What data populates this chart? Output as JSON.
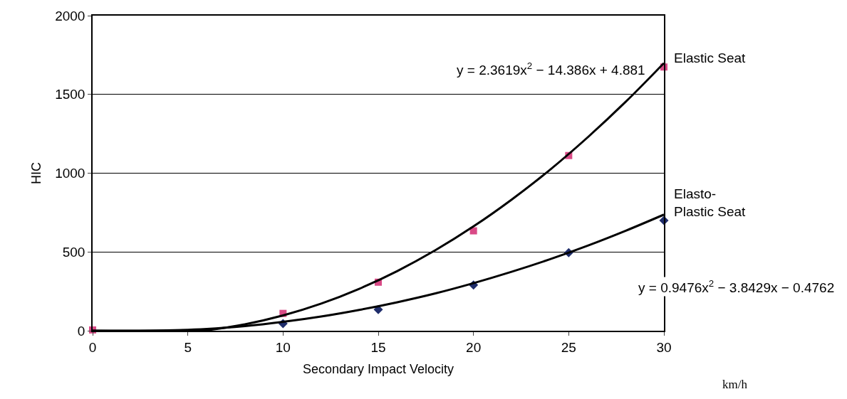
{
  "chart_data": {
    "type": "scatter",
    "xlabel": "Secondary Impact Velocity",
    "ylabel": "HIC",
    "xlim": [
      0,
      30
    ],
    "xticks": [
      0,
      5,
      10,
      15,
      20,
      25,
      30
    ],
    "ylim": [
      0,
      2000
    ],
    "yticks": [
      0,
      500,
      1000,
      1500,
      2000
    ],
    "grid": "y",
    "legend": false,
    "series": [
      {
        "name": "Elastic Seat",
        "color": "#d94a86",
        "marker": "square",
        "x": [
          0,
          10,
          15,
          20,
          25,
          30
        ],
        "values": [
          5,
          110,
          308,
          634,
          1112,
          1674
        ]
      },
      {
        "name": "Elasto-\nPlastic Seat",
        "color": "#1f2d6b",
        "marker": "diamond",
        "x": [
          10,
          15,
          20,
          25,
          30
        ],
        "values": [
          45,
          134,
          290,
          496,
          700
        ]
      },
      {
        "type": "line",
        "color": "#000000",
        "x": [
          0,
          3,
          6,
          8,
          10,
          12,
          14,
          16,
          18,
          20,
          22,
          24,
          26,
          28,
          30
        ],
        "values": [
          0,
          0,
          4,
          41,
          97,
          172,
          266,
          379,
          511,
          662,
          832,
          1020,
          1228,
          1454,
          1699
        ]
      },
      {
        "type": "line",
        "color": "#000000",
        "x": [
          0,
          3,
          6,
          8,
          10,
          12,
          14,
          16,
          18,
          20,
          22,
          24,
          26,
          28,
          30
        ],
        "values": [
          0,
          0,
          11,
          29,
          56,
          90,
          132,
          181,
          237,
          302,
          374,
          453,
          540,
          635,
          737
        ]
      }
    ],
    "annotations": [
      "y = 2.3619x$^{2}$ − 14.386x + 4.881",
      "y = 0.9476x$^{2}$ − 3.8429x − 0.4762",
      "km/h"
    ]
  }
}
